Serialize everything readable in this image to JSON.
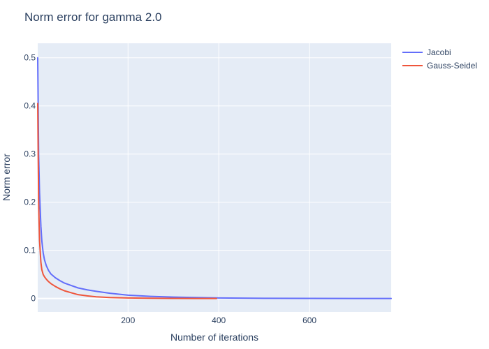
{
  "chart_data": {
    "type": "line",
    "title": "Norm error for gamma 2.0",
    "xlabel": "Number of iterations",
    "ylabel": "Norm error",
    "xlim": [
      1,
      780
    ],
    "ylim": [
      -0.028,
      0.53
    ],
    "xticks": [
      200,
      400,
      600
    ],
    "yticks": [
      0,
      0.1,
      0.2,
      0.3,
      0.4,
      0.5
    ],
    "grid": true,
    "legend": "top-right, outside plot",
    "plot_bg": "#e5ecf6",
    "series": [
      {
        "name": "Jacobi",
        "color": "#636efa",
        "x": [
          1,
          3,
          5,
          8,
          10,
          13,
          16,
          20,
          25,
          30,
          40,
          50,
          60,
          75,
          90,
          110,
          130,
          160,
          200,
          250,
          300,
          350,
          400,
          450,
          500,
          600,
          700,
          780
        ],
        "y": [
          0.5,
          0.3,
          0.22,
          0.15,
          0.12,
          0.095,
          0.08,
          0.068,
          0.058,
          0.051,
          0.043,
          0.037,
          0.032,
          0.027,
          0.022,
          0.018,
          0.015,
          0.011,
          0.007,
          0.0045,
          0.003,
          0.002,
          0.0012,
          0.0008,
          0.0005,
          0.0003,
          0.0001,
          5e-05
        ]
      },
      {
        "name": "Gauss-Seidel",
        "color": "#ef553b",
        "x": [
          1,
          2,
          3,
          5,
          8,
          10,
          13,
          16,
          20,
          25,
          30,
          40,
          50,
          60,
          75,
          90,
          110,
          130,
          160,
          200,
          250,
          300,
          350,
          395
        ],
        "y": [
          0.405,
          0.3,
          0.2,
          0.12,
          0.075,
          0.06,
          0.05,
          0.045,
          0.04,
          0.035,
          0.031,
          0.025,
          0.02,
          0.016,
          0.012,
          0.008,
          0.0055,
          0.0035,
          0.002,
          0.0012,
          0.0006,
          0.0003,
          0.00015,
          0.0001
        ]
      }
    ]
  }
}
